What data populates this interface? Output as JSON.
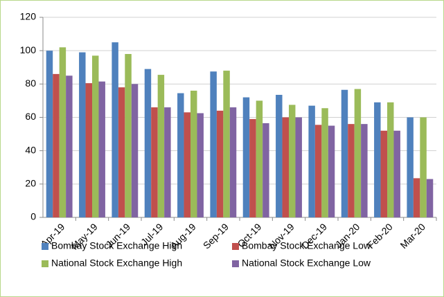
{
  "chart_data": {
    "type": "bar",
    "categories": [
      "Apr-19",
      "May-19",
      "Jun-19",
      "Jul-19",
      "Aug-19",
      "Sep-19",
      "Oct-19",
      "Nov-19",
      "Dec-19",
      "Jan-20",
      "Feb-20",
      "Mar-20"
    ],
    "series": [
      {
        "name": "Bombay Stock Exchange High",
        "color": "#4f81bd",
        "values": [
          100,
          99,
          105,
          89,
          74.5,
          87.5,
          72,
          73.5,
          67,
          76.5,
          69,
          60
        ]
      },
      {
        "name": "Bombay Stock Exchange Low",
        "color": "#c0504d",
        "values": [
          86,
          80.5,
          78,
          66,
          63,
          64,
          59,
          60,
          55.5,
          56,
          52,
          23.5
        ]
      },
      {
        "name": "National Stock Exchange High",
        "color": "#9bbb59",
        "values": [
          102,
          97,
          98,
          85.5,
          76,
          88,
          70,
          67.5,
          65.5,
          77,
          69,
          60
        ]
      },
      {
        "name": "National Stock Exchange Low",
        "color": "#8064a2",
        "values": [
          85,
          81.5,
          80,
          66,
          62.5,
          66,
          56.5,
          60,
          55,
          56,
          52,
          23
        ]
      }
    ],
    "ylim": [
      0,
      120
    ],
    "yticks": [
      0,
      20,
      40,
      60,
      80,
      100,
      120
    ],
    "grid": true
  }
}
